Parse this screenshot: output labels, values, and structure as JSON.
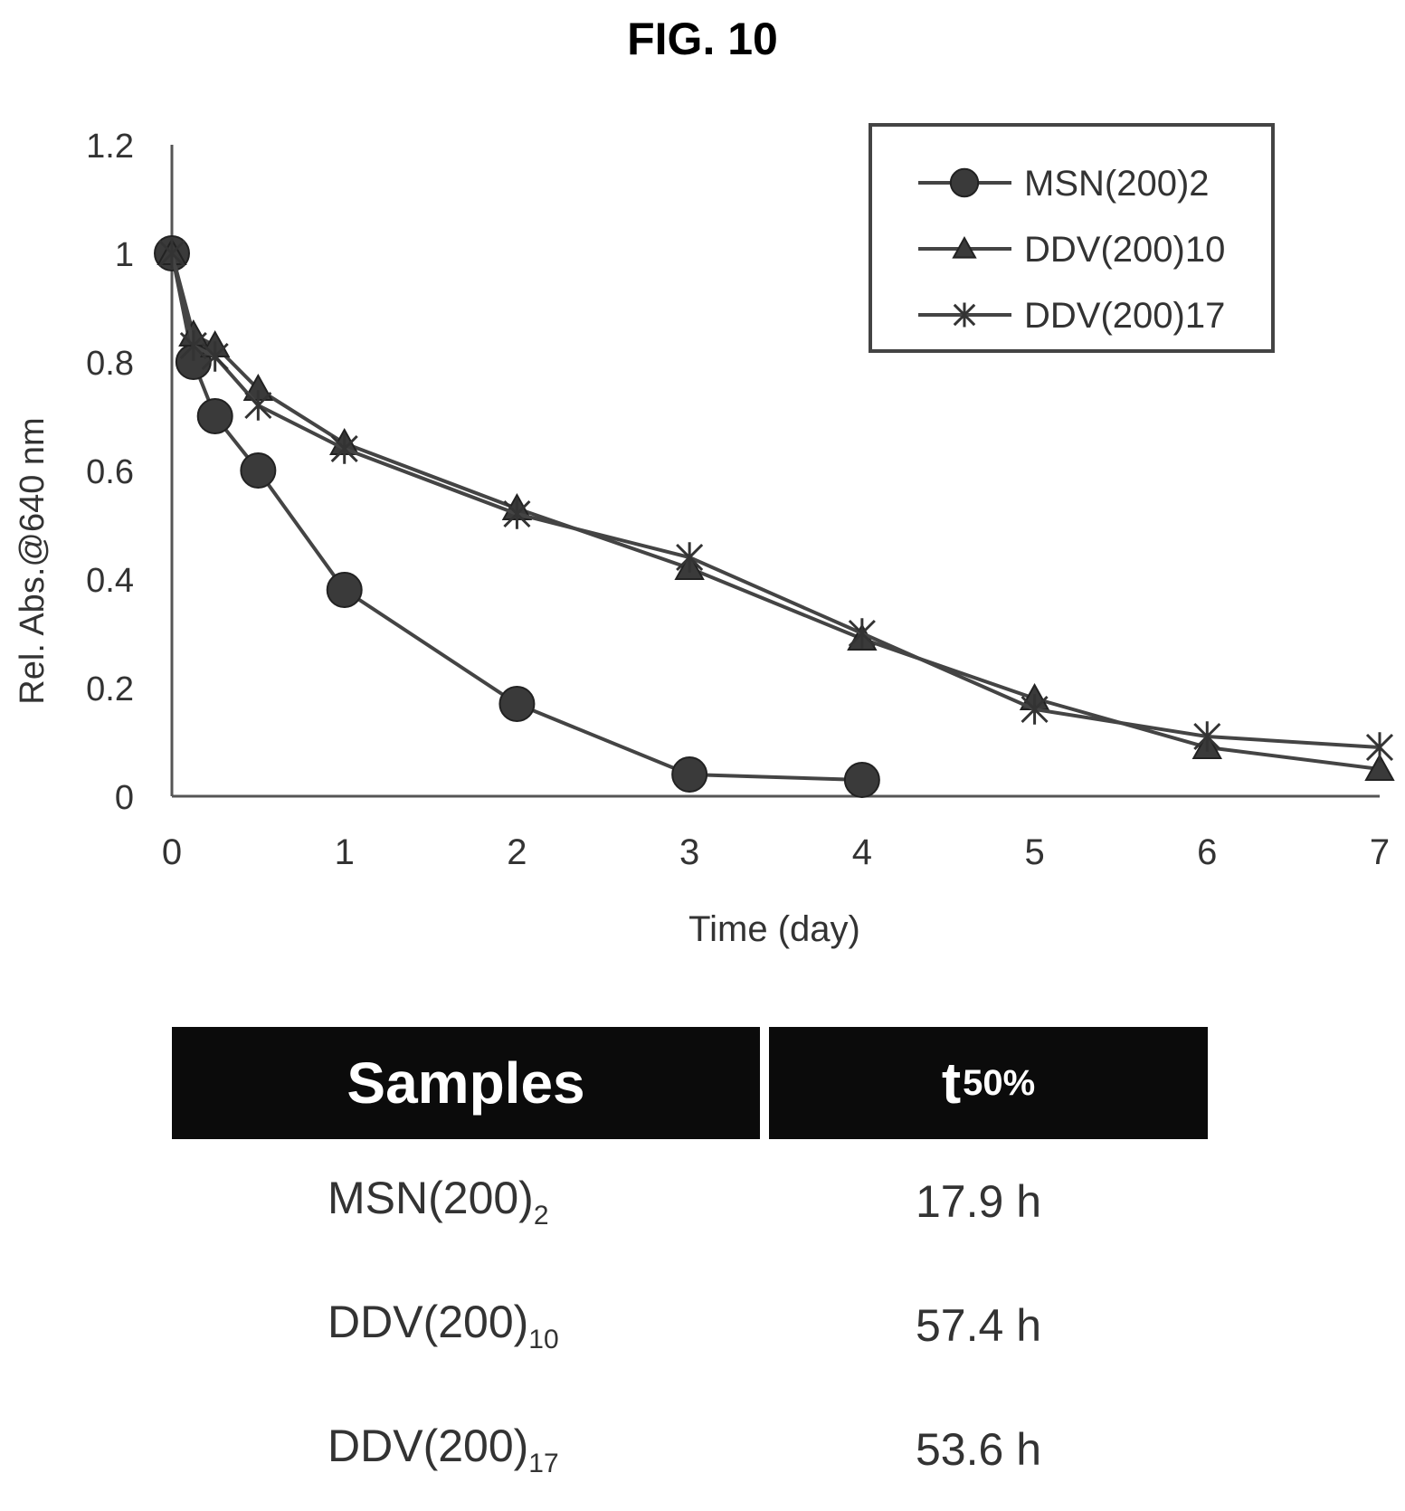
{
  "figure": {
    "title": "FIG. 10"
  },
  "chart_data": {
    "type": "line",
    "title": "",
    "xlabel": "Time (day)",
    "ylabel": "Rel. Abs.@640 nm",
    "xlim": [
      0,
      7
    ],
    "ylim": [
      0,
      1.2
    ],
    "xticks": [
      0,
      1,
      2,
      3,
      4,
      5,
      6,
      7
    ],
    "yticks": [
      0,
      0.2,
      0.4,
      0.6,
      0.8,
      1,
      1.2
    ],
    "xtick_labels": [
      "0",
      "1",
      "2",
      "3",
      "4",
      "5",
      "6",
      "7"
    ],
    "ytick_labels": [
      "0",
      "0.2",
      "0.4",
      "0.6",
      "0.8",
      "1",
      "1.2"
    ],
    "grid": false,
    "legend_position": "top-right",
    "series": [
      {
        "name": "MSN(200)2",
        "marker": "circle",
        "color": "#444444",
        "x": [
          0,
          0.125,
          0.25,
          0.5,
          1,
          2,
          3,
          4
        ],
        "y": [
          1.0,
          0.8,
          0.7,
          0.6,
          0.38,
          0.17,
          0.04,
          0.03
        ]
      },
      {
        "name": "DDV(200)10",
        "marker": "triangle",
        "color": "#444444",
        "x": [
          0,
          0.125,
          0.25,
          0.5,
          1,
          2,
          3,
          4,
          5,
          6,
          7
        ],
        "y": [
          1.0,
          0.85,
          0.83,
          0.75,
          0.65,
          0.53,
          0.42,
          0.29,
          0.18,
          0.09,
          0.05
        ]
      },
      {
        "name": "DDV(200)17",
        "marker": "x",
        "color": "#444444",
        "x": [
          0,
          0.125,
          0.25,
          0.5,
          1,
          2,
          3,
          4,
          5,
          6,
          7
        ],
        "y": [
          1.0,
          0.83,
          0.81,
          0.72,
          0.64,
          0.52,
          0.44,
          0.3,
          0.16,
          0.11,
          0.09
        ]
      }
    ]
  },
  "table": {
    "headers": {
      "samples": "Samples",
      "t50_main": "t",
      "t50_sub": "50%"
    },
    "rows": [
      {
        "name": "MSN(200)",
        "sub": "2",
        "value": "17.9 h"
      },
      {
        "name": "DDV(200)",
        "sub": "10",
        "value": "57.4 h"
      },
      {
        "name": "DDV(200)",
        "sub": "17",
        "value": "53.6 h"
      }
    ]
  }
}
